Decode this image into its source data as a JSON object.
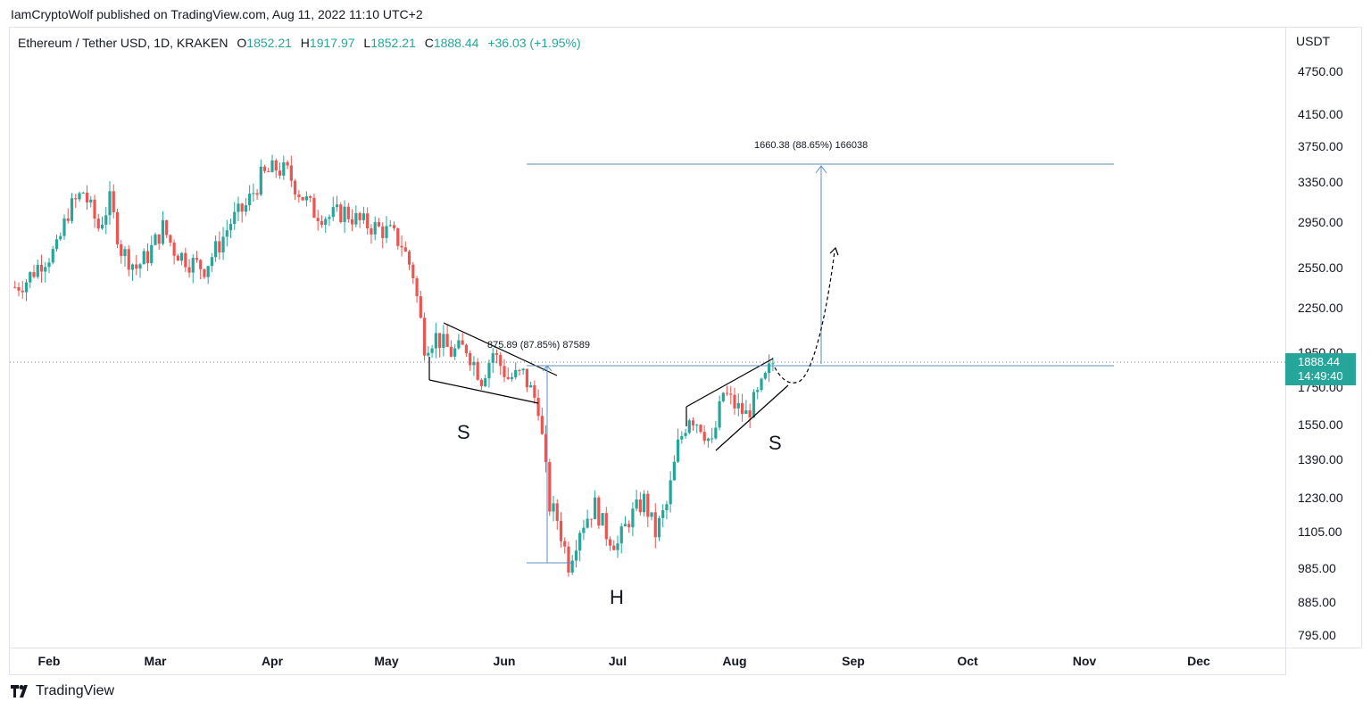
{
  "header": {
    "attribution": "IamCryptoWolf published on TradingView.com, Aug 11, 2022 11:10 UTC+2"
  },
  "legend": {
    "symbol": "Ethereum / Tether USD, 1D, KRAKEN",
    "o_label": "O",
    "o_value": "1852.21",
    "h_label": "H",
    "h_value": "1917.97",
    "l_label": "L",
    "l_value": "1852.21",
    "c_label": "C",
    "c_value": "1888.44",
    "change": "+36.03 (+1.95%)"
  },
  "price_axis": {
    "unit": "USDT",
    "ticks": [
      "4750.00",
      "4150.00",
      "3750.00",
      "3350.00",
      "2950.00",
      "2550.00",
      "2250.00",
      "1950.00",
      "1750.00",
      "1550.00",
      "1390.00",
      "1230.00",
      "1105.00",
      "985.00",
      "885.00",
      "795.00"
    ],
    "last_price": "1888.44",
    "countdown": "14:49:40"
  },
  "time_axis": {
    "ticks": [
      "Feb",
      "Mar",
      "Apr",
      "May",
      "Jun",
      "Jul",
      "Aug",
      "Sep",
      "Oct",
      "Nov",
      "Dec"
    ]
  },
  "annotations": {
    "measure_small": "875.89 (87.85%) 87589",
    "measure_large": "1660.38 (88.65%) 166038",
    "left_shoulder": "S",
    "head": "H",
    "right_shoulder": "S"
  },
  "footer": {
    "brand": "TradingView"
  },
  "colors": {
    "up": "#26a69a",
    "down": "#ef5350",
    "measure": "#5b8fc7",
    "price_line": "#26a69a",
    "drawing": "#000000"
  },
  "chart_data": {
    "type": "candlestick",
    "title": "Ethereum / Tether USD, 1D, KRAKEN",
    "ylabel": "USDT",
    "y_scale": "log",
    "ylim": [
      760,
      5200
    ],
    "x_range": [
      "2022-01-23",
      "2022-12-31"
    ],
    "pattern": "inverse head and shoulders",
    "last_close": 1888.44,
    "measure_moves": [
      {
        "from": 985,
        "to": 1860,
        "label": "875.89 (87.85%) 87589"
      },
      {
        "from": 1860,
        "to": 3520,
        "label": "1660.38 (88.65%) 166038"
      }
    ],
    "price_path": [
      [
        "2022-01-23",
        2400
      ],
      [
        "2022-01-26",
        2450
      ],
      [
        "2022-01-30",
        2600
      ],
      [
        "2022-02-03",
        2700
      ],
      [
        "2022-02-06",
        3050
      ],
      [
        "2022-02-10",
        3250
      ],
      [
        "2022-02-14",
        2900
      ],
      [
        "2022-02-17",
        3150
      ],
      [
        "2022-02-20",
        2700
      ],
      [
        "2022-02-24",
        2550
      ],
      [
        "2022-02-27",
        2650
      ],
      [
        "2022-03-03",
        2900
      ],
      [
        "2022-03-06",
        2700
      ],
      [
        "2022-03-10",
        2600
      ],
      [
        "2022-03-14",
        2550
      ],
      [
        "2022-03-18",
        2750
      ],
      [
        "2022-03-21",
        2950
      ],
      [
        "2022-03-25",
        3100
      ],
      [
        "2022-03-29",
        3400
      ],
      [
        "2022-04-02",
        3500
      ],
      [
        "2022-04-05",
        3450
      ],
      [
        "2022-04-08",
        3250
      ],
      [
        "2022-04-12",
        3050
      ],
      [
        "2022-04-16",
        3000
      ],
      [
        "2022-04-20",
        3050
      ],
      [
        "2022-04-24",
        2950
      ],
      [
        "2022-04-28",
        2900
      ],
      [
        "2022-05-02",
        2850
      ],
      [
        "2022-05-05",
        2750
      ],
      [
        "2022-05-08",
        2500
      ],
      [
        "2022-05-11",
        2000
      ],
      [
        "2022-05-14",
        2050
      ],
      [
        "2022-05-18",
        1950
      ],
      [
        "2022-05-22",
        1980
      ],
      [
        "2022-05-26",
        1800
      ],
      [
        "2022-05-29",
        1950
      ],
      [
        "2022-06-02",
        1800
      ],
      [
        "2022-06-06",
        1820
      ],
      [
        "2022-06-10",
        1650
      ],
      [
        "2022-06-13",
        1200
      ],
      [
        "2022-06-15",
        1150
      ],
      [
        "2022-06-18",
        1000
      ],
      [
        "2022-06-21",
        1120
      ],
      [
        "2022-06-25",
        1200
      ],
      [
        "2022-06-28",
        1100
      ],
      [
        "2022-07-01",
        1060
      ],
      [
        "2022-07-04",
        1150
      ],
      [
        "2022-07-08",
        1220
      ],
      [
        "2022-07-11",
        1100
      ],
      [
        "2022-07-14",
        1200
      ],
      [
        "2022-07-17",
        1450
      ],
      [
        "2022-07-20",
        1600
      ],
      [
        "2022-07-23",
        1550
      ],
      [
        "2022-07-26",
        1450
      ],
      [
        "2022-07-29",
        1720
      ],
      [
        "2022-08-01",
        1650
      ],
      [
        "2022-08-04",
        1600
      ],
      [
        "2022-08-07",
        1700
      ],
      [
        "2022-08-11",
        1888.44
      ]
    ]
  }
}
